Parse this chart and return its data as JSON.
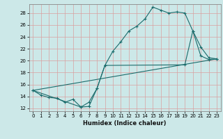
{
  "xlabel": "Humidex (Indice chaleur)",
  "bg_color": "#cce8e8",
  "line_color": "#1a6b6b",
  "grid_color": "#d9a0a0",
  "xlim": [
    -0.5,
    23.5
  ],
  "ylim": [
    11.5,
    29.5
  ],
  "xticks": [
    0,
    1,
    2,
    3,
    4,
    5,
    6,
    7,
    8,
    9,
    10,
    11,
    12,
    13,
    14,
    15,
    16,
    17,
    18,
    19,
    20,
    21,
    22,
    23
  ],
  "yticks": [
    12,
    14,
    16,
    18,
    20,
    22,
    24,
    26,
    28
  ],
  "line1_x": [
    0,
    1,
    2,
    3,
    4,
    5,
    6,
    7,
    8,
    9,
    10,
    11,
    12,
    13,
    14,
    15,
    16,
    17,
    18,
    19,
    20,
    21,
    22,
    23
  ],
  "line1_y": [
    15,
    14.2,
    13.8,
    13.7,
    13.0,
    13.5,
    12.2,
    12.3,
    15.3,
    19.2,
    21.6,
    23.2,
    25.0,
    25.8,
    27.0,
    29.0,
    28.5,
    28.0,
    28.2,
    28.0,
    25.0,
    20.8,
    20.2,
    20.3
  ],
  "line2_x": [
    0,
    6,
    7,
    8,
    9,
    19,
    20,
    21,
    22,
    23
  ],
  "line2_y": [
    15,
    12.2,
    13.0,
    15.3,
    19.2,
    19.3,
    25.0,
    22.3,
    20.5,
    20.3
  ],
  "line3_x": [
    0,
    23
  ],
  "line3_y": [
    15,
    20.3
  ]
}
